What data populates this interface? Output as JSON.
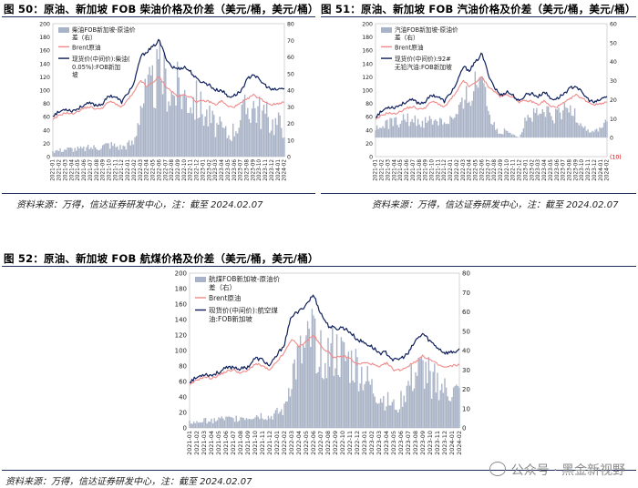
{
  "figures": {
    "fig50_title": "图 50：原油、新加坡 FOB 柴油价格及价差（美元/桶，美元/桶）",
    "fig51_title": "图 51：原油、新加坡 FOB 汽油价格及价差（美元/桶，美元/桶）",
    "fig52_title": "图 52：原油、新加坡 FOB 航煤价格及价差（美元/桶，美元/桶）",
    "source_text": "资料来源：万得，信达证券研发中心，注：截至 2024.02.07"
  },
  "watermark": {
    "text": "公众号 · 黑金新视野"
  },
  "colors": {
    "spread": "#a9b3c7",
    "brent": "#f08a8a",
    "product": "#0e1f5b"
  },
  "chart_data": [
    {
      "id": "diesel",
      "type": "line",
      "title": "原油、新加坡 FOB 柴油价格及价差（美元/桶，美元/桶）",
      "x": [
        "2021-01",
        "2021-02",
        "2021-03",
        "2021-04",
        "2021-05",
        "2021-06",
        "2021-07",
        "2021-08",
        "2021-09",
        "2021-10",
        "2021-11",
        "2021-12",
        "2022-01",
        "2022-02",
        "2022-03",
        "2022-04",
        "2022-05",
        "2022-06",
        "2022-07",
        "2022-08",
        "2022-09",
        "2022-10",
        "2022-11",
        "2022-12",
        "2023-01",
        "2023-02",
        "2023-03",
        "2023-04",
        "2023-05",
        "2023-06",
        "2023-07",
        "2023-08",
        "2023-09",
        "2023-10",
        "2023-11",
        "2023-12",
        "2024-01",
        "2024-02"
      ],
      "y_left_lim": [
        0,
        200
      ],
      "y_left_ticks": [
        0,
        20,
        40,
        60,
        80,
        100,
        120,
        140,
        160,
        180,
        200
      ],
      "y_right_lim": [
        0,
        80
      ],
      "y_right_ticks": [
        0,
        10,
        20,
        30,
        40,
        50,
        60,
        70,
        80
      ],
      "y_right_tick_labels": [
        "0",
        "10",
        "20",
        "30",
        "40",
        "50",
        "60",
        "70",
        "80"
      ],
      "legend": [
        "柴油FOB新加坡-原油价差（右）",
        "Brent原油",
        "现货价(中间价):柴油(0.05%):FOB新加坡"
      ],
      "series": [
        {
          "name": "柴油FOB新加坡-原油价差（右）",
          "kind": "area",
          "axis": "right",
          "values": [
            4,
            4,
            5,
            5,
            5,
            5,
            6,
            6,
            7,
            8,
            7,
            6,
            8,
            9,
            35,
            40,
            45,
            55,
            50,
            40,
            45,
            40,
            38,
            36,
            30,
            25,
            20,
            18,
            14,
            18,
            25,
            32,
            34,
            30,
            27,
            22,
            22,
            20
          ]
        },
        {
          "name": "Brent原油",
          "kind": "line",
          "axis": "left",
          "values": [
            55,
            62,
            66,
            64,
            68,
            73,
            75,
            71,
            74,
            83,
            80,
            74,
            86,
            97,
            115,
            105,
            112,
            120,
            106,
            98,
            90,
            93,
            90,
            82,
            84,
            83,
            78,
            84,
            75,
            75,
            80,
            86,
            93,
            88,
            82,
            78,
            80,
            82
          ]
        },
        {
          "name": "现货价(中间价):柴油(0.05%):FOB新加坡",
          "kind": "line",
          "axis": "left",
          "values": [
            62,
            67,
            72,
            69,
            72,
            78,
            80,
            77,
            80,
            92,
            90,
            82,
            96,
            110,
            150,
            158,
            165,
            175,
            150,
            135,
            132,
            135,
            128,
            116,
            112,
            108,
            100,
            100,
            90,
            92,
            98,
            115,
            125,
            115,
            107,
            100,
            101,
            103
          ]
        }
      ]
    },
    {
      "id": "gasoline",
      "type": "line",
      "title": "原油、新加坡 FOB 汽油价格及价差（美元/桶，美元/桶）",
      "x": [
        "2021-01",
        "2021-02",
        "2021-03",
        "2021-04",
        "2021-05",
        "2021-06",
        "2021-07",
        "2021-08",
        "2021-09",
        "2021-10",
        "2021-11",
        "2021-12",
        "2022-01",
        "2022-02",
        "2022-03",
        "2022-04",
        "2022-05",
        "2022-06",
        "2022-07",
        "2022-08",
        "2022-09",
        "2022-10",
        "2022-11",
        "2022-12",
        "2023-01",
        "2023-02",
        "2023-03",
        "2023-04",
        "2023-05",
        "2023-06",
        "2023-07",
        "2023-08",
        "2023-09",
        "2023-10",
        "2023-11",
        "2023-12",
        "2024-01",
        "2024-02"
      ],
      "y_left_lim": [
        0,
        200
      ],
      "y_left_ticks": [
        0,
        20,
        40,
        60,
        80,
        100,
        120,
        140,
        160,
        180,
        200
      ],
      "y_right_lim": [
        -10,
        60
      ],
      "y_right_ticks": [
        -10,
        0,
        10,
        20,
        30,
        40,
        50,
        60
      ],
      "y_right_tick_labels": [
        "(10)",
        "0",
        "10",
        "20",
        "30",
        "40",
        "50",
        "60"
      ],
      "legend": [
        "汽油FOB新加坡-原油价差（右）",
        "Brent原油",
        "现货价(中间价):92#无铅汽油:FOB新加坡"
      ],
      "series": [
        {
          "name": "汽油FOB新加坡-原油价差（右）",
          "kind": "area",
          "axis": "right",
          "values": [
            5,
            6,
            8,
            9,
            10,
            10,
            10,
            9,
            9,
            10,
            10,
            9,
            10,
            12,
            18,
            24,
            30,
            38,
            20,
            6,
            2,
            5,
            2,
            0,
            10,
            12,
            12,
            14,
            12,
            12,
            14,
            16,
            14,
            8,
            4,
            3,
            6,
            9
          ]
        },
        {
          "name": "Brent原油",
          "kind": "line",
          "axis": "left",
          "values": [
            55,
            62,
            66,
            64,
            68,
            73,
            75,
            71,
            74,
            83,
            80,
            74,
            86,
            97,
            115,
            105,
            112,
            120,
            106,
            98,
            90,
            93,
            90,
            82,
            84,
            83,
            78,
            84,
            75,
            75,
            80,
            86,
            93,
            88,
            82,
            78,
            80,
            82
          ]
        },
        {
          "name": "现货价(中间价):92#无铅汽油:FOB新加坡",
          "kind": "line",
          "axis": "left",
          "values": [
            60,
            68,
            75,
            74,
            78,
            83,
            85,
            80,
            83,
            93,
            90,
            83,
            96,
            110,
            135,
            130,
            142,
            155,
            125,
            104,
            92,
            98,
            92,
            82,
            94,
            95,
            90,
            98,
            87,
            87,
            94,
            102,
            107,
            96,
            86,
            81,
            86,
            91
          ]
        }
      ]
    },
    {
      "id": "jet",
      "type": "line",
      "title": "原油、新加坡 FOB 航煤价格及价差（美元/桶，美元/桶）",
      "x": [
        "2021-01",
        "2021-02",
        "2021-03",
        "2021-04",
        "2021-05",
        "2021-06",
        "2021-07",
        "2021-08",
        "2021-09",
        "2021-10",
        "2021-11",
        "2021-12",
        "2022-01",
        "2022-02",
        "2022-03",
        "2022-04",
        "2022-05",
        "2022-06",
        "2022-07",
        "2022-08",
        "2022-09",
        "2022-10",
        "2022-11",
        "2022-12",
        "2023-01",
        "2023-02",
        "2023-03",
        "2023-04",
        "2023-05",
        "2023-06",
        "2023-07",
        "2023-08",
        "2023-09",
        "2023-10",
        "2023-11",
        "2023-12",
        "2024-01",
        "2024-02"
      ],
      "y_left_lim": [
        0,
        200
      ],
      "y_left_ticks": [
        0,
        20,
        40,
        60,
        80,
        100,
        120,
        140,
        160,
        180,
        200
      ],
      "y_right_lim": [
        0,
        80
      ],
      "y_right_ticks": [
        0,
        10,
        20,
        30,
        40,
        50,
        60,
        70,
        80
      ],
      "y_right_tick_labels": [
        "0",
        "10",
        "20",
        "30",
        "40",
        "50",
        "60",
        "70",
        "80"
      ],
      "legend": [
        "航煤FOB新加坡-原油价差（右）",
        "Brent原油",
        "现货价(中间价):航空煤油:FOB新加坡"
      ],
      "series": [
        {
          "name": "航煤FOB新加坡-原油价差（右）",
          "kind": "area",
          "axis": "right",
          "values": [
            3,
            3,
            4,
            4,
            5,
            5,
            5,
            6,
            6,
            7,
            7,
            6,
            8,
            10,
            30,
            38,
            42,
            52,
            48,
            40,
            42,
            38,
            36,
            34,
            28,
            22,
            18,
            15,
            12,
            16,
            23,
            30,
            32,
            28,
            25,
            21,
            20,
            19
          ]
        },
        {
          "name": "Brent原油",
          "kind": "line",
          "axis": "left",
          "values": [
            55,
            62,
            66,
            64,
            68,
            73,
            75,
            71,
            74,
            83,
            80,
            74,
            86,
            97,
            115,
            105,
            112,
            120,
            106,
            98,
            90,
            93,
            90,
            82,
            84,
            83,
            78,
            84,
            75,
            75,
            80,
            86,
            93,
            88,
            82,
            78,
            80,
            82
          ]
        },
        {
          "name": "现货价(中间价):航空煤油:FOB新加坡",
          "kind": "line",
          "axis": "left",
          "values": [
            60,
            65,
            70,
            68,
            72,
            77,
            79,
            76,
            79,
            90,
            88,
            80,
            94,
            108,
            145,
            150,
            160,
            172,
            148,
            132,
            128,
            130,
            124,
            114,
            110,
            105,
            97,
            97,
            87,
            90,
            96,
            113,
            122,
            112,
            104,
            97,
            98,
            100
          ]
        }
      ]
    }
  ]
}
